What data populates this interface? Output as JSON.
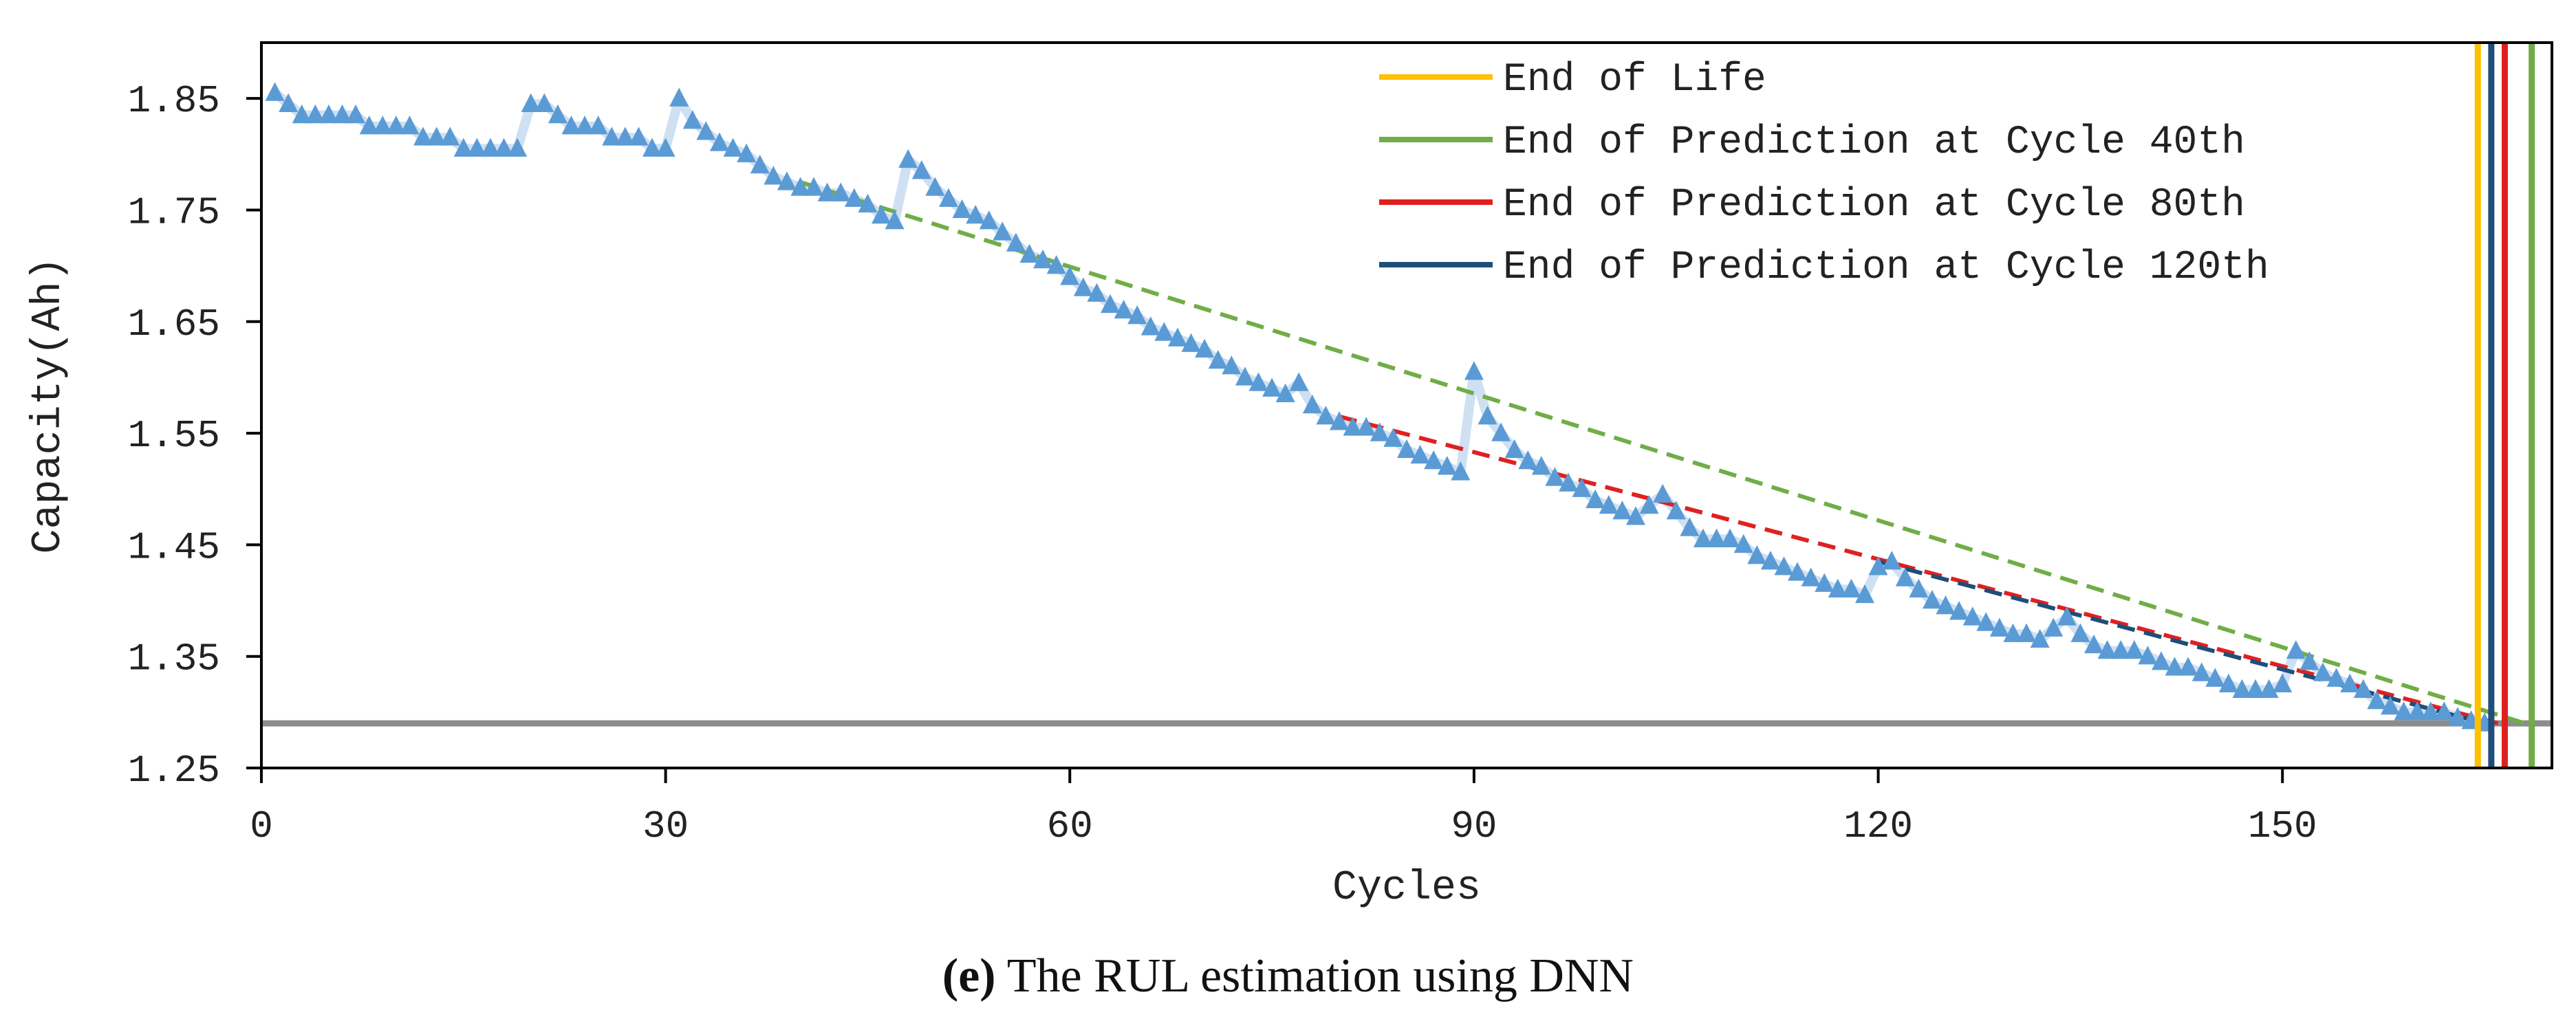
{
  "caption": {
    "label": "(e)",
    "text": " The RUL estimation using DNN"
  },
  "chart_data": {
    "type": "line",
    "title": "",
    "xlabel": "Cycles",
    "ylabel": "Capacity(Ah)",
    "xlim": [
      0,
      170
    ],
    "ylim": [
      1.25,
      1.9
    ],
    "xticks": [
      0,
      30,
      60,
      90,
      120,
      150
    ],
    "yticks": [
      1.25,
      1.35,
      1.45,
      1.55,
      1.65,
      1.75,
      1.85
    ],
    "grid": false,
    "legend": "top-right",
    "threshold": {
      "y": 1.29,
      "color": "#8c8c8c"
    },
    "measured": {
      "color": "#5b9bd5",
      "marker": "triangle",
      "x": [
        1,
        2,
        3,
        4,
        5,
        6,
        7,
        8,
        9,
        10,
        11,
        12,
        13,
        14,
        15,
        16,
        17,
        18,
        19,
        20,
        21,
        22,
        23,
        24,
        25,
        26,
        27,
        28,
        29,
        30,
        31,
        32,
        33,
        34,
        35,
        36,
        37,
        38,
        39,
        40,
        41,
        42,
        43,
        44,
        45,
        46,
        47,
        48,
        49,
        50,
        51,
        52,
        53,
        54,
        55,
        56,
        57,
        58,
        59,
        60,
        61,
        62,
        63,
        64,
        65,
        66,
        67,
        68,
        69,
        70,
        71,
        72,
        73,
        74,
        75,
        76,
        77,
        78,
        79,
        80,
        81,
        82,
        83,
        84,
        85,
        86,
        87,
        88,
        89,
        90,
        91,
        92,
        93,
        94,
        95,
        96,
        97,
        98,
        99,
        100,
        101,
        102,
        103,
        104,
        105,
        106,
        107,
        108,
        109,
        110,
        111,
        112,
        113,
        114,
        115,
        116,
        117,
        118,
        119,
        120,
        121,
        122,
        123,
        124,
        125,
        126,
        127,
        128,
        129,
        130,
        131,
        132,
        133,
        134,
        135,
        136,
        137,
        138,
        139,
        140,
        141,
        142,
        143,
        144,
        145,
        146,
        147,
        148,
        149,
        150,
        151,
        152,
        153,
        154,
        155,
        156,
        157,
        158,
        159,
        160,
        161,
        162,
        163,
        164,
        165
      ],
      "y": [
        1.855,
        1.845,
        1.835,
        1.835,
        1.835,
        1.835,
        1.835,
        1.825,
        1.825,
        1.825,
        1.825,
        1.815,
        1.815,
        1.815,
        1.805,
        1.805,
        1.805,
        1.805,
        1.805,
        1.845,
        1.845,
        1.835,
        1.825,
        1.825,
        1.825,
        1.815,
        1.815,
        1.815,
        1.805,
        1.805,
        1.85,
        1.83,
        1.82,
        1.81,
        1.805,
        1.8,
        1.79,
        1.78,
        1.775,
        1.77,
        1.77,
        1.765,
        1.765,
        1.76,
        1.755,
        1.745,
        1.74,
        1.795,
        1.785,
        1.77,
        1.76,
        1.75,
        1.745,
        1.74,
        1.73,
        1.72,
        1.71,
        1.705,
        1.7,
        1.69,
        1.68,
        1.675,
        1.665,
        1.66,
        1.655,
        1.645,
        1.64,
        1.635,
        1.63,
        1.625,
        1.615,
        1.61,
        1.6,
        1.595,
        1.59,
        1.585,
        1.595,
        1.575,
        1.565,
        1.56,
        1.555,
        1.555,
        1.55,
        1.545,
        1.535,
        1.53,
        1.525,
        1.52,
        1.515,
        1.605,
        1.565,
        1.55,
        1.535,
        1.525,
        1.52,
        1.51,
        1.505,
        1.5,
        1.49,
        1.485,
        1.48,
        1.475,
        1.485,
        1.495,
        1.48,
        1.465,
        1.455,
        1.455,
        1.455,
        1.45,
        1.44,
        1.435,
        1.43,
        1.425,
        1.42,
        1.415,
        1.41,
        1.41,
        1.405,
        1.43,
        1.435,
        1.42,
        1.41,
        1.4,
        1.395,
        1.39,
        1.385,
        1.38,
        1.375,
        1.37,
        1.37,
        1.365,
        1.375,
        1.385,
        1.37,
        1.36,
        1.355,
        1.355,
        1.355,
        1.35,
        1.345,
        1.34,
        1.34,
        1.335,
        1.33,
        1.325,
        1.32,
        1.32,
        1.32,
        1.325,
        1.355,
        1.345,
        1.335,
        1.33,
        1.325,
        1.32,
        1.31,
        1.305,
        1.3,
        1.3,
        1.3,
        1.3,
        1.295,
        1.292,
        1.29
      ]
    },
    "series": [
      {
        "name": "End of Life",
        "color": "#ffc000",
        "type": "vline",
        "x": 164.5
      },
      {
        "name": "End of Prediction at Cycle 40th",
        "color": "#70ad47",
        "type": "vline",
        "x": 168.5,
        "prediction": {
          "x": [
            40,
            168
          ],
          "y": [
            1.775,
            1.29
          ]
        }
      },
      {
        "name": "End of Prediction at Cycle 80th",
        "color": "#e02020",
        "type": "vline",
        "x": 166.5,
        "prediction": {
          "x": [
            80,
            166
          ],
          "y": [
            1.565,
            1.29
          ]
        }
      },
      {
        "name": "End of Prediction at Cycle 120th",
        "color": "#1f4e79",
        "type": "vline",
        "x": 165.5,
        "prediction": {
          "x": [
            120,
            165
          ],
          "y": [
            1.435,
            1.29
          ]
        }
      }
    ]
  }
}
